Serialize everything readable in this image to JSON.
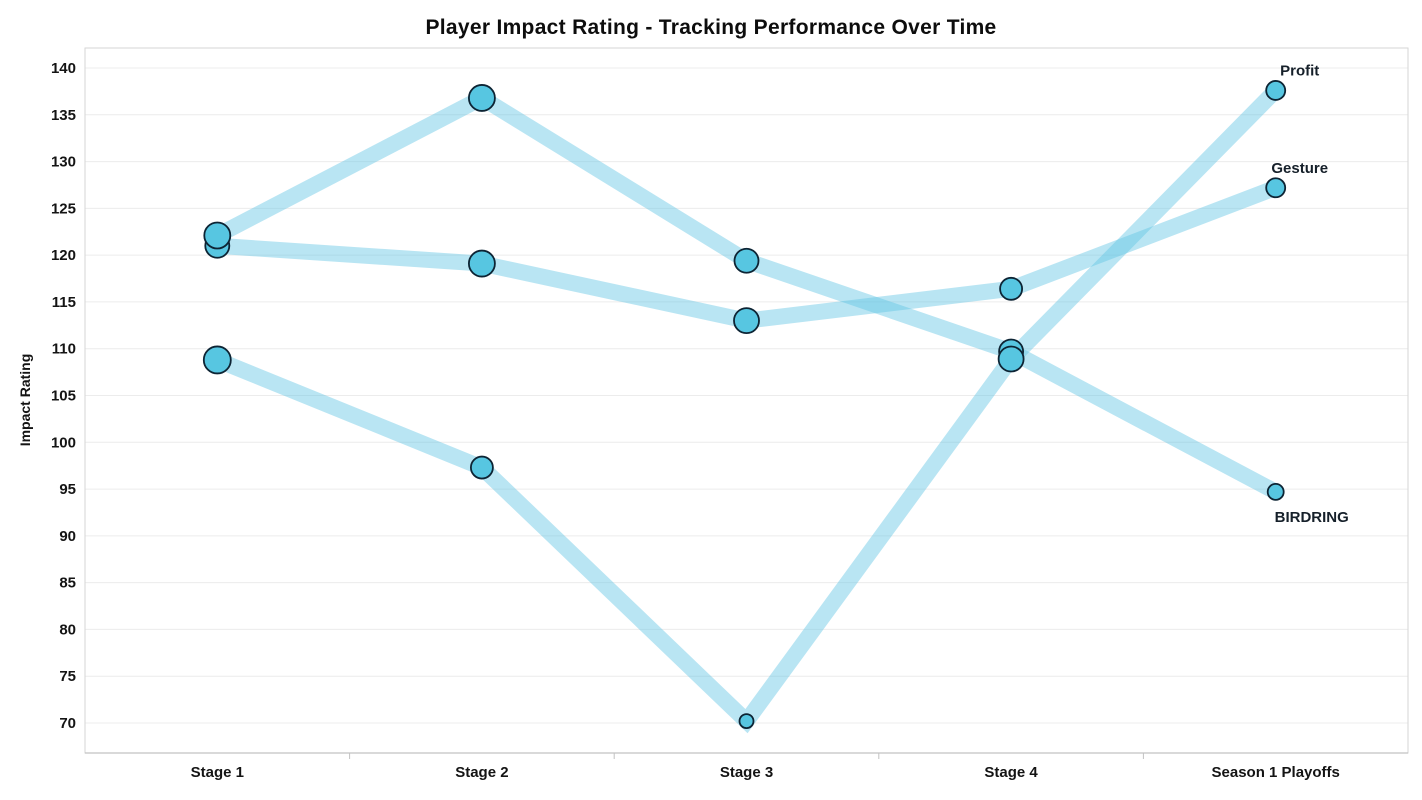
{
  "chart_data": {
    "type": "line",
    "subtype": "bubble-line",
    "title": "Player Impact Rating - Tracking Performance Over Time",
    "xlabel": "",
    "ylabel": "Impact Rating",
    "categories": [
      "Stage 1",
      "Stage 2",
      "Stage 3",
      "Stage 4",
      "Season 1 Playoffs"
    ],
    "y_ticks": [
      70,
      75,
      80,
      85,
      90,
      95,
      100,
      105,
      110,
      115,
      120,
      125,
      130,
      135,
      140
    ],
    "ylim": [
      67,
      142
    ],
    "grid": "horizontal",
    "legend_position": "end-of-line-labels",
    "series": [
      {
        "name": "Gesture",
        "values": [
          121.0,
          119.1,
          113.0,
          116.4,
          127.2
        ],
        "marker_radii": [
          12,
          13,
          12.5,
          11,
          9.5
        ],
        "label_position": "above"
      },
      {
        "name": "BIRDRING",
        "values": [
          122.1,
          136.8,
          119.4,
          109.7,
          94.7
        ],
        "marker_radii": [
          13,
          13,
          12,
          12,
          8
        ],
        "label_position": "below"
      },
      {
        "name": "Profit",
        "values": [
          108.8,
          97.3,
          70.2,
          108.9,
          137.6
        ],
        "marker_radii": [
          13.5,
          11,
          7,
          12.5,
          9.5
        ],
        "label_position": "above"
      }
    ],
    "colors": {
      "band": "rgba(99, 197, 229, 0.45)",
      "marker_fill": "#57c6e1",
      "marker_stroke": "#0d2434",
      "grid_line": "#ececec",
      "plot_border": "#d6d6d6",
      "axis_line": "#c2c2c2",
      "text": "#141414"
    }
  }
}
